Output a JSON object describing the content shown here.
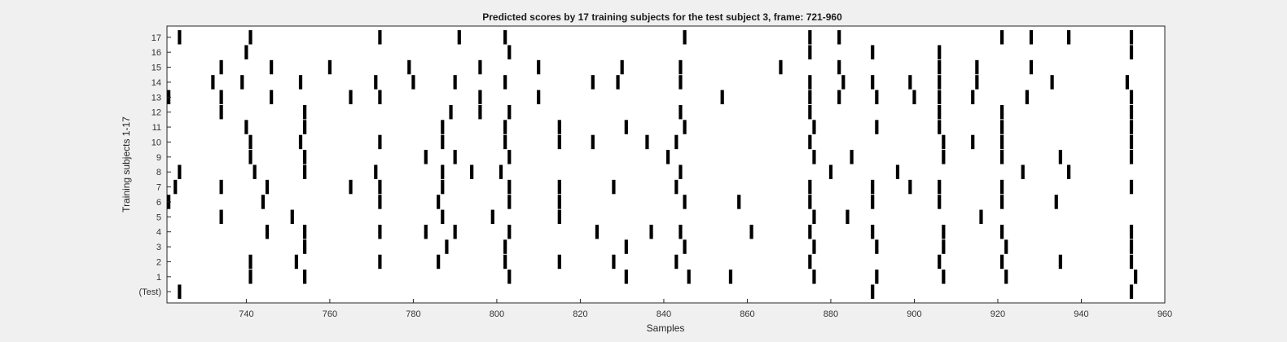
{
  "chart_data": {
    "type": "scatter",
    "title": "Predicted scores by 17 training subjects for the test subject 3, frame: 721-960",
    "xlabel": "Samples",
    "ylabel": "Training subjects 1-17",
    "xlim": [
      721,
      960
    ],
    "x_ticks": [
      740,
      760,
      780,
      800,
      820,
      840,
      860,
      880,
      900,
      920,
      940,
      960
    ],
    "row_labels": [
      "(Test)",
      "1",
      "2",
      "3",
      "4",
      "5",
      "6",
      "7",
      "8",
      "9",
      "10",
      "11",
      "12",
      "13",
      "14",
      "15",
      "16",
      "17"
    ],
    "marker": "vertical-bar",
    "marker_color": "#000000",
    "background_color": "#ffffff",
    "series": [
      {
        "values": [
          724,
          890,
          952
        ]
      },
      {
        "values": [
          741,
          754,
          803,
          831,
          846,
          856,
          876,
          891,
          907,
          922,
          953
        ]
      },
      {
        "values": [
          741,
          752,
          772,
          786,
          802,
          815,
          828,
          843,
          875,
          906,
          921,
          935,
          952
        ]
      },
      {
        "values": [
          754,
          788,
          802,
          831,
          845,
          876,
          891,
          907,
          922,
          952
        ]
      },
      {
        "values": [
          745,
          754,
          772,
          783,
          790,
          803,
          824,
          837,
          844,
          861,
          875,
          890,
          907,
          921,
          952
        ]
      },
      {
        "values": [
          734,
          751,
          787,
          799,
          815,
          876,
          884,
          916
        ]
      },
      {
        "values": [
          721,
          744,
          772,
          786,
          803,
          815,
          845,
          858,
          875,
          890,
          906,
          921,
          934
        ]
      },
      {
        "values": [
          723,
          734,
          745,
          765,
          772,
          787,
          803,
          815,
          828,
          843,
          875,
          890,
          899,
          906,
          921,
          952
        ]
      },
      {
        "values": [
          724,
          742,
          754,
          771,
          787,
          794,
          801,
          844,
          880,
          896,
          926,
          937
        ]
      },
      {
        "values": [
          741,
          754,
          783,
          790,
          803,
          841,
          876,
          885,
          907,
          921,
          935,
          952
        ]
      },
      {
        "values": [
          741,
          753,
          772,
          787,
          802,
          815,
          823,
          836,
          843,
          875,
          907,
          914,
          921,
          952
        ]
      },
      {
        "values": [
          740,
          754,
          787,
          802,
          815,
          831,
          845,
          876,
          891,
          906,
          921,
          952
        ]
      },
      {
        "values": [
          734,
          754,
          789,
          796,
          803,
          844,
          875,
          906,
          921,
          952
        ]
      },
      {
        "values": [
          721,
          734,
          746,
          765,
          772,
          796,
          810,
          854,
          875,
          882,
          891,
          900,
          906,
          914,
          927,
          952
        ]
      },
      {
        "values": [
          732,
          739,
          753,
          771,
          780,
          790,
          802,
          823,
          829,
          844,
          875,
          883,
          890,
          899,
          906,
          915,
          933,
          951
        ]
      },
      {
        "values": [
          734,
          746,
          760,
          779,
          796,
          810,
          830,
          844,
          868,
          882,
          906,
          915,
          928
        ]
      },
      {
        "values": [
          740,
          803,
          875,
          890,
          906,
          952
        ]
      },
      {
        "values": [
          724,
          741,
          772,
          791,
          802,
          845,
          875,
          882,
          921,
          928,
          937,
          952
        ]
      }
    ]
  }
}
